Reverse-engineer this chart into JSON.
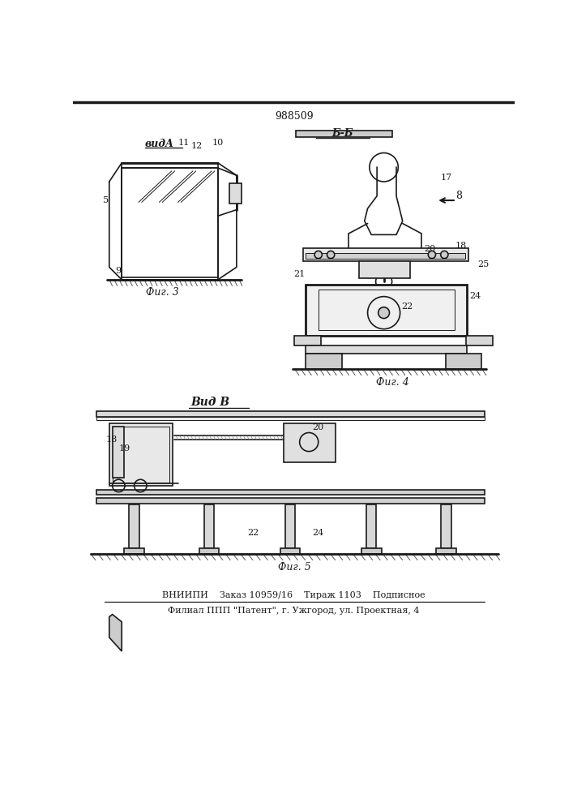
{
  "patent_number": "988509",
  "top_label": "988509",
  "fig3_label": "Фиг. 3",
  "fig4_label": "Фиг. 4",
  "fig5_label": "Фиг. 5",
  "view_a_label": "видA",
  "view_b_label": "Б-Б",
  "view_v_label": "Вид В",
  "arrow_v": "8",
  "footer_line1": "ВНИИПИ    Заказ 10959/16    Тираж 1103    Подписное",
  "footer_line2": "Филиал ППП \"Патент\", г. Ужгород, ул. Проектная, 4",
  "bg_color": "#ffffff",
  "line_color": "#1a1a1a",
  "numbers": {
    "fig3": [
      "5",
      "9",
      "11",
      "12",
      "10"
    ],
    "fig4_top": [
      "17",
      "8",
      "20",
      "18",
      "25",
      "21",
      "22",
      "24"
    ],
    "fig5": [
      "19",
      "18",
      "20",
      "22",
      "24"
    ]
  }
}
